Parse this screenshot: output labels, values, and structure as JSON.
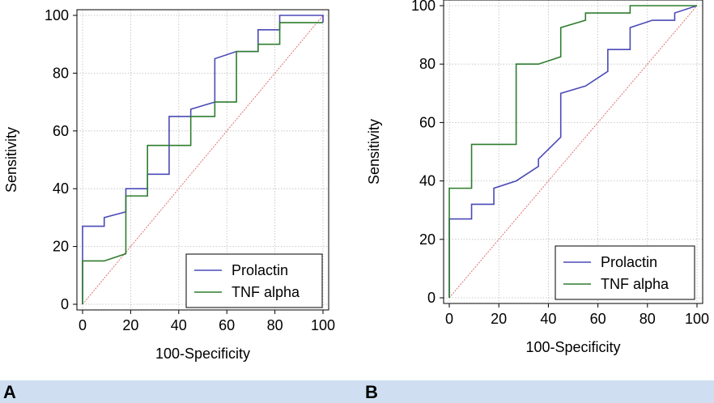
{
  "chart_data": [
    {
      "type": "line",
      "panel_label": "A",
      "xlabel": "100-Specificity",
      "ylabel": "Sensitivity",
      "xlim": [
        0,
        100
      ],
      "ylim": [
        0,
        100
      ],
      "xticks": [
        0,
        20,
        40,
        60,
        80,
        100
      ],
      "yticks": [
        0,
        20,
        40,
        60,
        80,
        100
      ],
      "grid": true,
      "legend_position": "bottom-right",
      "reference_line": {
        "x": [
          0,
          100
        ],
        "y": [
          0,
          100
        ],
        "color": "#e07070"
      },
      "series": [
        {
          "name": "Prolactin",
          "color": "#4a4ab8",
          "x": [
            0,
            0,
            9,
            9,
            18,
            18,
            27,
            27,
            36,
            36,
            45,
            45,
            55,
            55,
            64,
            73,
            73,
            82,
            82,
            100,
            100
          ],
          "y": [
            0,
            27,
            27,
            30,
            32,
            40,
            40,
            45,
            45,
            65,
            65,
            67.5,
            70,
            85,
            87.5,
            87.5,
            95,
            95,
            100,
            100,
            97.5
          ]
        },
        {
          "name": "TNF alpha",
          "color": "#2e7d2e",
          "x": [
            0,
            0,
            9,
            18,
            18,
            27,
            27,
            45,
            45,
            55,
            55,
            64,
            64,
            73,
            73,
            82,
            82,
            100
          ],
          "y": [
            0,
            15,
            15,
            17.5,
            37.5,
            37.5,
            55,
            55,
            65,
            65,
            70,
            70,
            87.5,
            87.5,
            90,
            90,
            97.5,
            97.5
          ]
        }
      ]
    },
    {
      "type": "line",
      "panel_label": "B",
      "xlabel": "100-Specificity",
      "ylabel": "Sensitivity",
      "xlim": [
        0,
        100
      ],
      "ylim": [
        0,
        100
      ],
      "xticks": [
        0,
        20,
        40,
        60,
        80,
        100
      ],
      "yticks": [
        0,
        20,
        40,
        60,
        80,
        100
      ],
      "grid": true,
      "legend_position": "bottom-right",
      "reference_line": {
        "x": [
          0,
          100
        ],
        "y": [
          0,
          100
        ],
        "color": "#e07070"
      },
      "series": [
        {
          "name": "Prolactin",
          "color": "#4a4ab8",
          "x": [
            0,
            0,
            9,
            9,
            18,
            18,
            27,
            36,
            36,
            45,
            45,
            55,
            64,
            64,
            73,
            73,
            82,
            91,
            91,
            100
          ],
          "y": [
            0,
            27,
            27,
            32,
            32,
            37.5,
            40,
            45,
            47.5,
            55,
            70,
            72.5,
            77.5,
            85,
            85,
            92.5,
            95,
            95,
            97.5,
            100
          ]
        },
        {
          "name": "TNF alpha",
          "color": "#2e7d2e",
          "x": [
            0,
            0,
            9,
            9,
            27,
            27,
            36,
            45,
            45,
            55,
            55,
            73,
            73,
            100
          ],
          "y": [
            0,
            37.5,
            37.5,
            52.5,
            52.5,
            80,
            80,
            82.5,
            92.5,
            95,
            97.5,
            97.5,
            100,
            100
          ]
        }
      ]
    }
  ]
}
